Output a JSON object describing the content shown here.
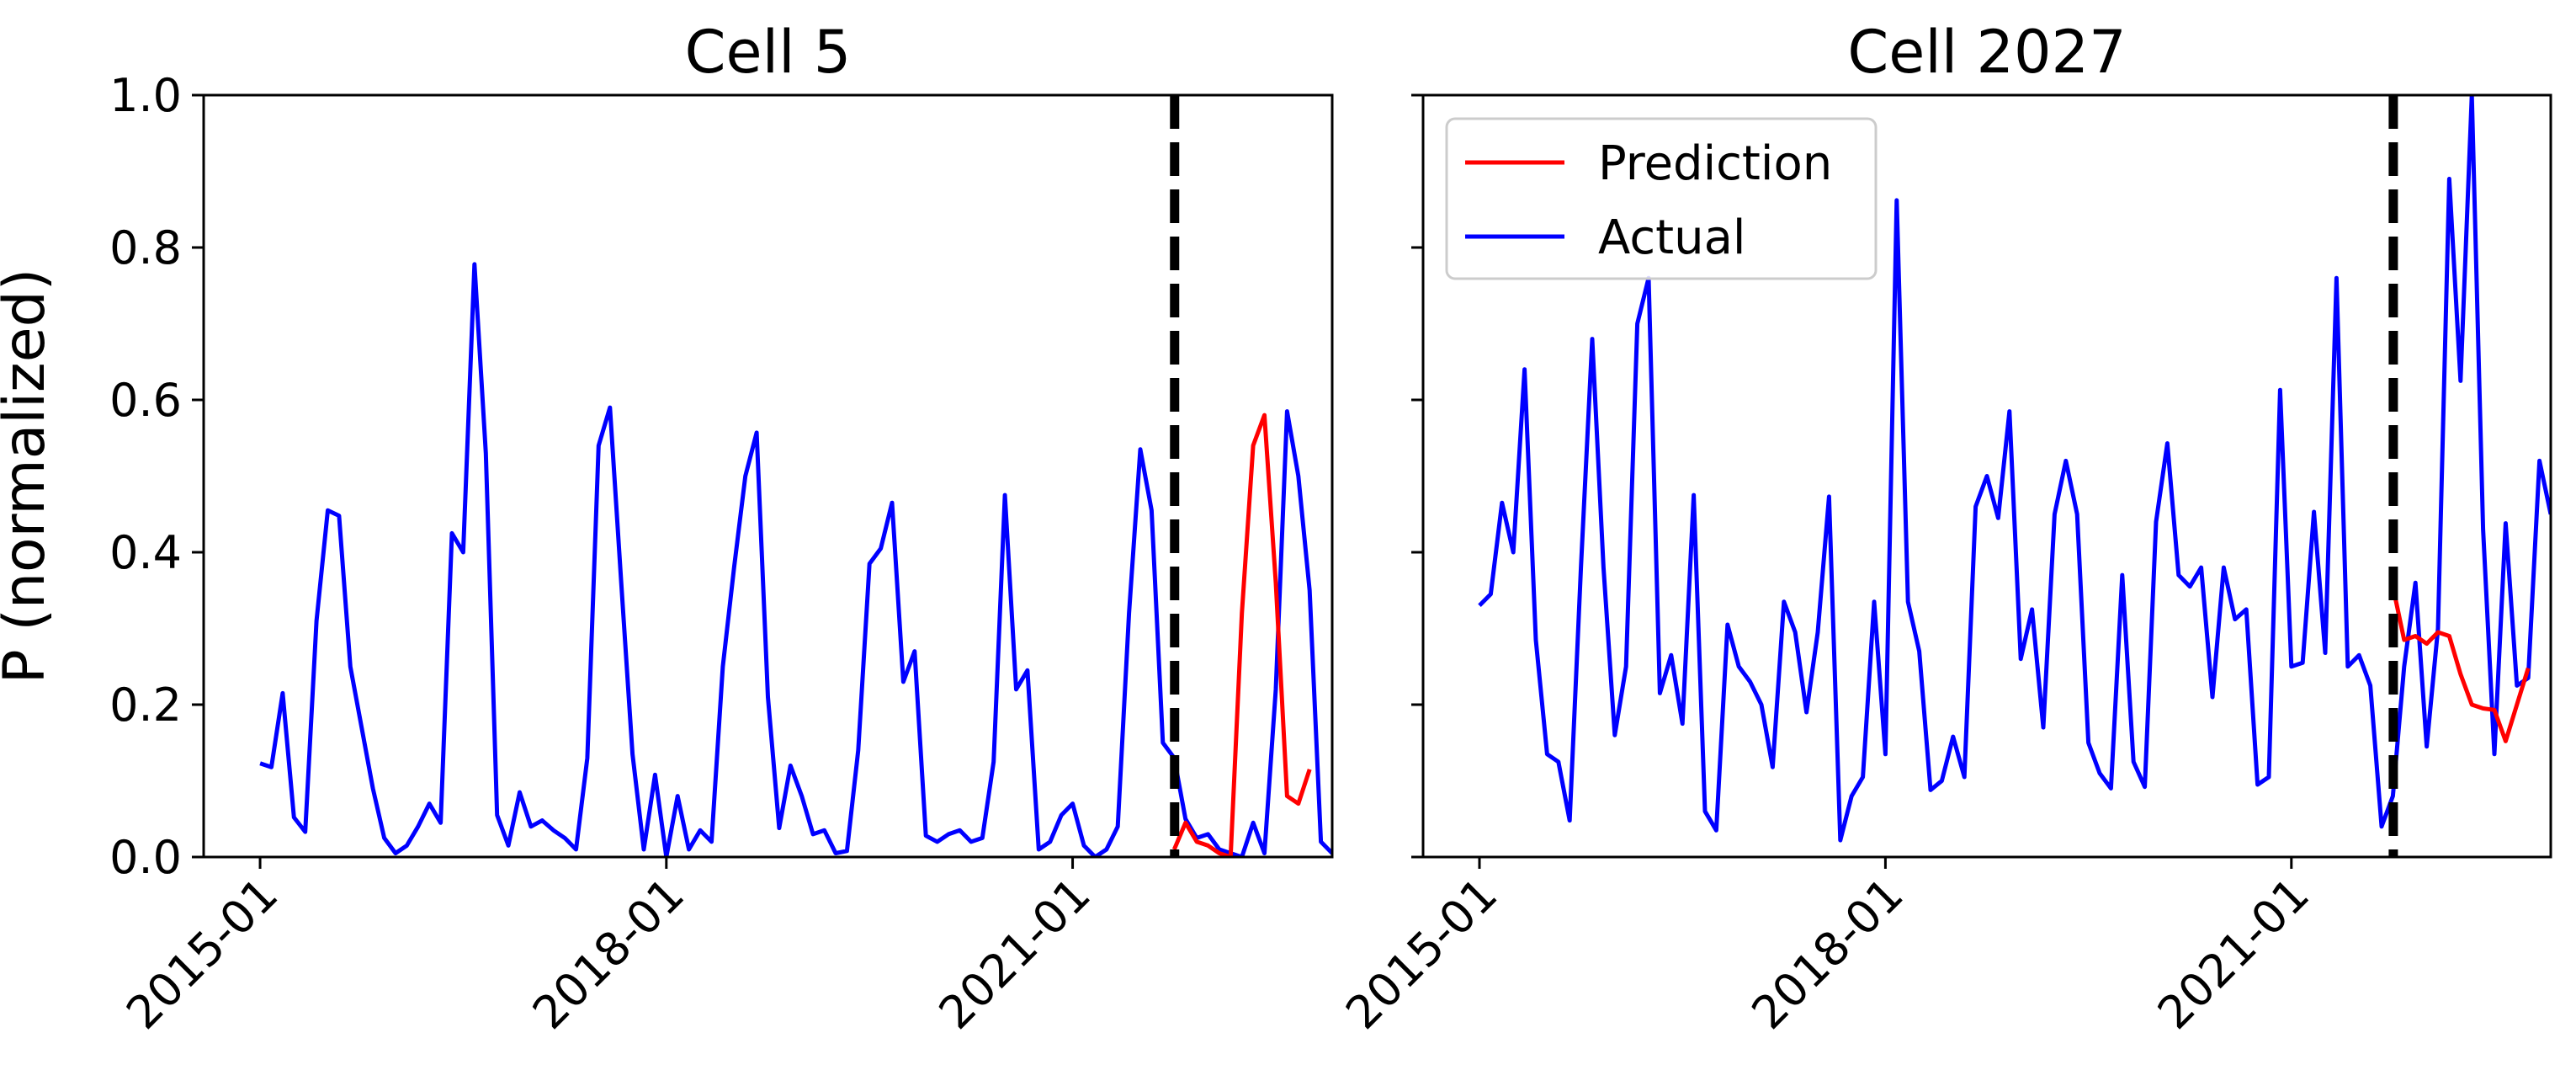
{
  "chart_data": [
    {
      "type": "line",
      "title": "Cell 5",
      "xlabel": "",
      "ylabel": "P (normalized)",
      "ylim": [
        0,
        1
      ],
      "yticks": [
        "0.0",
        "0.2",
        "0.4",
        "0.6",
        "0.8",
        "1.0"
      ],
      "xticks": [
        "2015-01",
        "2018-01",
        "2021-01"
      ],
      "x_range": [
        "2014-08",
        "2022-12"
      ],
      "x_start": "2015-01",
      "x_step": "1 month",
      "cutoff": "2021-10",
      "legend": null,
      "series": [
        {
          "name": "Actual",
          "color": "#0000ff",
          "values": [
            0.123,
            0.118,
            0.215,
            0.052,
            0.033,
            0.31,
            0.455,
            0.448,
            0.25,
            0.17,
            0.09,
            0.025,
            0.005,
            0.015,
            0.04,
            0.07,
            0.045,
            0.425,
            0.4,
            0.778,
            0.53,
            0.055,
            0.015,
            0.085,
            0.04,
            0.048,
            0.035,
            0.025,
            0.01,
            0.13,
            0.54,
            0.59,
            0.36,
            0.135,
            0.01,
            0.108,
            0.0,
            0.08,
            0.01,
            0.035,
            0.02,
            0.25,
            0.38,
            0.5,
            0.557,
            0.21,
            0.038,
            0.12,
            0.08,
            0.03,
            0.035,
            0.005,
            0.008,
            0.14,
            0.385,
            0.405,
            0.465,
            0.23,
            0.27,
            0.028,
            0.02,
            0.03,
            0.035,
            0.02,
            0.025,
            0.125,
            0.475,
            0.22,
            0.245,
            0.01,
            0.02,
            0.055,
            0.07,
            0.015,
            0.0,
            0.01,
            0.04,
            0.32,
            0.535,
            0.455,
            0.15,
            0.13,
            0.05,
            0.025,
            0.03,
            0.01,
            0.005,
            0.0,
            0.045,
            0.005,
            0.22,
            0.585,
            0.5,
            0.35,
            0.02,
            0.005,
            0.045
          ]
        },
        {
          "name": "Prediction",
          "color": "#ff0000",
          "start": "2021-10",
          "values": [
            0.01,
            0.045,
            0.02,
            0.015,
            0.005,
            0.0,
            0.32,
            0.54,
            0.58,
            0.36,
            0.08,
            0.07,
            0.115
          ]
        }
      ]
    },
    {
      "type": "line",
      "title": "Cell 2027",
      "xlabel": "",
      "ylabel": "",
      "ylim": [
        0,
        1
      ],
      "xticks": [
        "2015-01",
        "2018-01",
        "2021-01"
      ],
      "x_range": [
        "2014-08",
        "2022-12"
      ],
      "x_start": "2015-01",
      "x_step": "1 month",
      "cutoff": "2021-10",
      "legend": {
        "location": "upper-left",
        "entries": [
          "Prediction",
          "Actual"
        ]
      },
      "series": [
        {
          "name": "Actual",
          "color": "#0000ff",
          "values": [
            0.33,
            0.345,
            0.465,
            0.4,
            0.64,
            0.285,
            0.135,
            0.125,
            0.048,
            0.38,
            0.68,
            0.38,
            0.16,
            0.25,
            0.7,
            0.76,
            0.215,
            0.265,
            0.175,
            0.475,
            0.06,
            0.035,
            0.305,
            0.25,
            0.23,
            0.2,
            0.118,
            0.335,
            0.295,
            0.19,
            0.295,
            0.473,
            0.022,
            0.08,
            0.105,
            0.335,
            0.135,
            0.862,
            0.335,
            0.27,
            0.088,
            0.1,
            0.158,
            0.105,
            0.46,
            0.5,
            0.445,
            0.585,
            0.26,
            0.325,
            0.17,
            0.45,
            0.52,
            0.45,
            0.15,
            0.11,
            0.09,
            0.37,
            0.125,
            0.092,
            0.44,
            0.543,
            0.37,
            0.355,
            0.38,
            0.21,
            0.38,
            0.312,
            0.325,
            0.095,
            0.105,
            0.613,
            0.25,
            0.255,
            0.453,
            0.268,
            0.76,
            0.25,
            0.265,
            0.225,
            0.04,
            0.08,
            0.25,
            0.36,
            0.145,
            0.3,
            0.89,
            0.625,
            1.0,
            0.43,
            0.135,
            0.438,
            0.225,
            0.235,
            0.52,
            0.45
          ]
        },
        {
          "name": "Prediction",
          "color": "#ff0000",
          "start": "2021-10",
          "values": [
            0.355,
            0.285,
            0.29,
            0.28,
            0.295,
            0.29,
            0.24,
            0.2,
            0.195,
            0.193,
            0.152,
            0.2,
            0.248
          ]
        }
      ]
    }
  ]
}
